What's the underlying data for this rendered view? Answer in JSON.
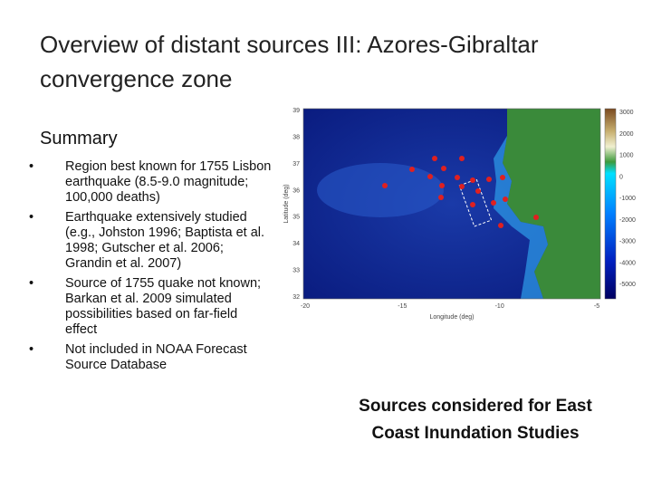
{
  "title": [
    "Overview of distant sources III: Azores-Gibraltar",
    "convergence zone"
  ],
  "summary": {
    "heading": "Summary",
    "bullets": [
      "Region best known for 1755 Lisbon earthquake (8.5-9.0 magnitude; 100,000 deaths)",
      "Earthquake extensively studied (e.g., Johston 1996; Baptista et al. 1998; Gutscher et al. 2006; Grandin et al. 2007)",
      "Source of 1755 quake not known; Barkan et al. 2009 simulated possibilities based on far-field effect",
      "Not included in NOAA Forecast Source Database"
    ]
  },
  "map": {
    "y_label": "Latitude (deg)",
    "x_label": "Longitude (deg)",
    "y_ticks": [
      "39",
      "38",
      "37",
      "36",
      "35",
      "34",
      "33",
      "32"
    ],
    "x_ticks": [
      "-20",
      "-15",
      "-10",
      "-5"
    ],
    "colorbar_ticks": [
      "3000",
      "2000",
      "1000",
      "0",
      "-1000",
      "-2000",
      "-3000",
      "-4000",
      "-5000"
    ]
  },
  "caption": [
    "Sources considered for East",
    "Coast Inundation Studies"
  ]
}
